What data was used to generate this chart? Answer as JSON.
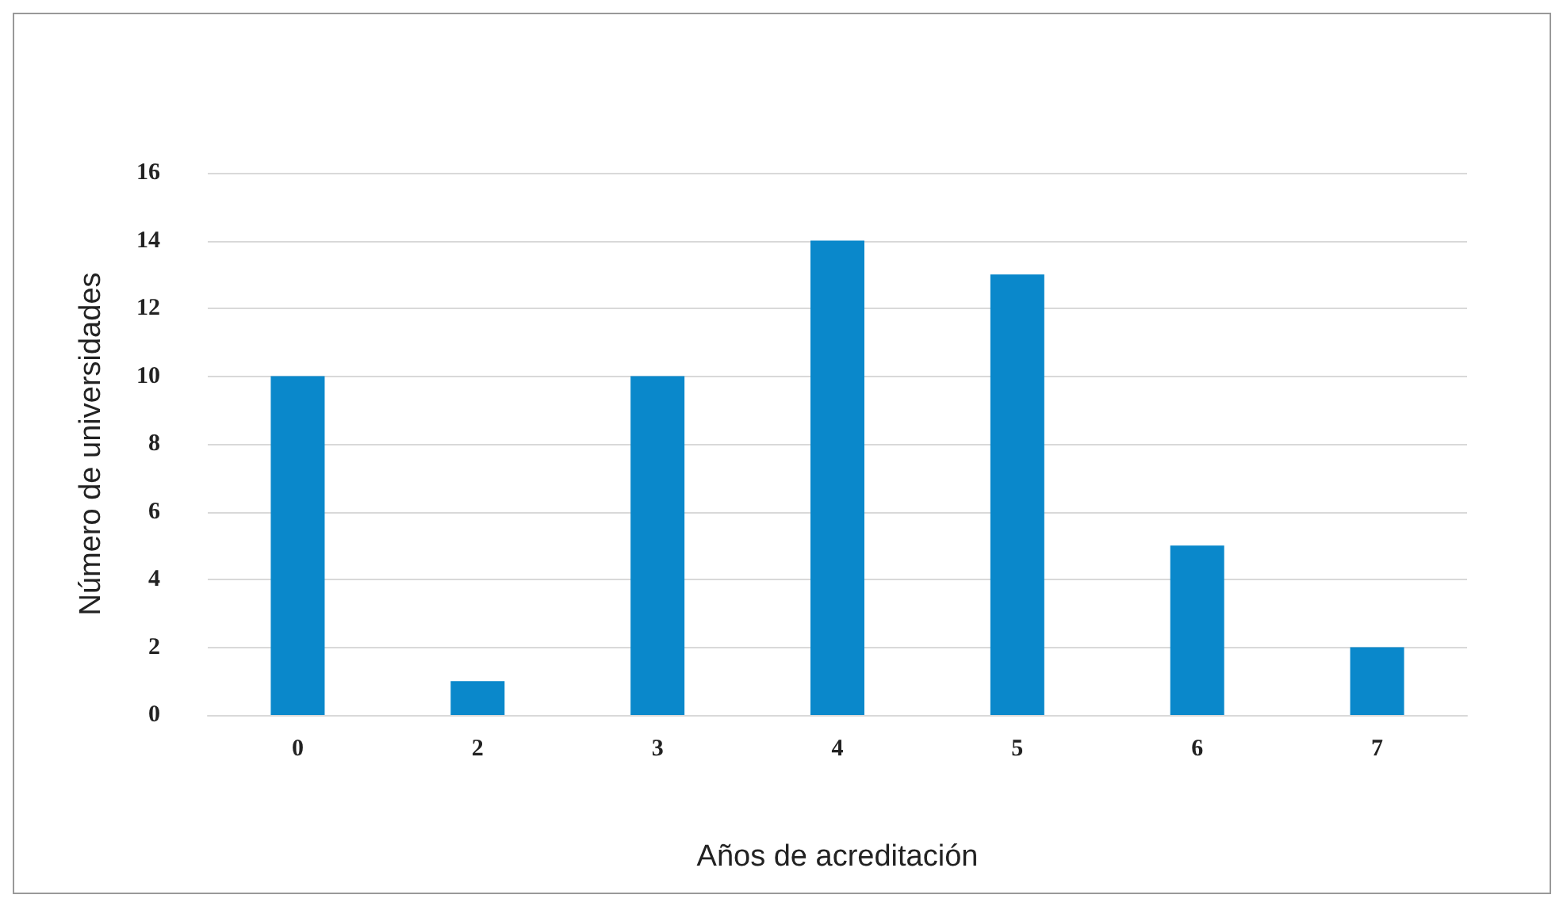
{
  "chart_data": {
    "type": "bar",
    "xlabel": "Años de acreditación",
    "ylabel": "Número de universidades",
    "categories": [
      "0",
      "2",
      "3",
      "4",
      "5",
      "6",
      "7"
    ],
    "values": [
      10,
      1,
      10,
      14,
      13,
      5,
      2
    ],
    "color": "#0a88cb",
    "ylim": [
      0,
      16
    ],
    "yticks": [
      0,
      2,
      4,
      6,
      8,
      10,
      12,
      14,
      16
    ],
    "grid": "y"
  }
}
